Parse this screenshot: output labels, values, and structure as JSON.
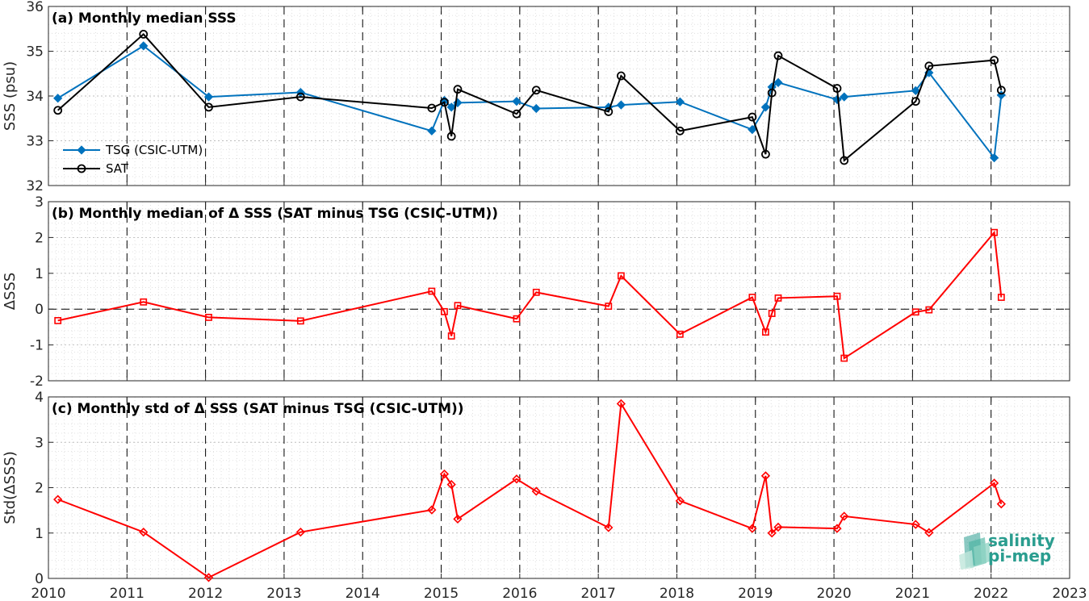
{
  "chart_data": [
    {
      "type": "line",
      "title": "(a) Monthly median SSS",
      "ylabel": "SSS (psu)",
      "xlim": [
        2010,
        2023
      ],
      "ylim": [
        32,
        36
      ],
      "yticks": [
        "32",
        "33",
        "34",
        "35",
        "36"
      ],
      "grid": true,
      "legend_position": "bottom-left",
      "series": [
        {
          "name": "TSG (CSIC-UTM)",
          "color": "#0072bd",
          "marker": "diamond",
          "x": [
            2010.12,
            2011.21,
            2012.04,
            2013.21,
            2014.88,
            2015.04,
            2015.13,
            2015.21,
            2015.96,
            2016.21,
            2017.13,
            2017.29,
            2018.04,
            2018.96,
            2019.13,
            2019.21,
            2019.29,
            2020.04,
            2020.13,
            2021.04,
            2021.21,
            2022.04,
            2022.13
          ],
          "y": [
            33.95,
            35.12,
            33.98,
            34.08,
            33.22,
            33.9,
            33.75,
            33.85,
            33.88,
            33.72,
            33.75,
            33.8,
            33.87,
            33.25,
            33.75,
            34.2,
            34.3,
            33.92,
            33.98,
            34.12,
            34.52,
            32.62,
            34.02
          ]
        },
        {
          "name": "SAT",
          "color": "#000000",
          "marker": "circle",
          "x": [
            2010.12,
            2011.21,
            2012.04,
            2013.21,
            2014.88,
            2015.04,
            2015.13,
            2015.21,
            2015.96,
            2016.21,
            2017.13,
            2017.29,
            2018.04,
            2018.96,
            2019.13,
            2019.21,
            2019.29,
            2020.04,
            2020.13,
            2021.04,
            2021.21,
            2022.04,
            2022.13
          ],
          "y": [
            33.68,
            35.38,
            33.75,
            33.98,
            33.73,
            33.86,
            33.1,
            34.15,
            33.6,
            34.13,
            33.65,
            34.45,
            33.22,
            33.53,
            32.7,
            34.07,
            34.9,
            34.17,
            32.56,
            33.88,
            34.67,
            34.8,
            34.13
          ]
        }
      ]
    },
    {
      "type": "line",
      "title": "(b) Monthly median of Δ SSS (SAT minus TSG (CSIC-UTM))",
      "ylabel": "ΔSSS",
      "xlim": [
        2010,
        2023
      ],
      "ylim": [
        -2,
        3
      ],
      "yticks": [
        "-2",
        "-1",
        "0",
        "1",
        "2",
        "3"
      ],
      "grid": true,
      "series": [
        {
          "color": "#ff0000",
          "marker": "square",
          "x": [
            2010.12,
            2011.21,
            2012.04,
            2013.21,
            2014.88,
            2015.04,
            2015.13,
            2015.21,
            2015.96,
            2016.21,
            2017.13,
            2017.29,
            2018.04,
            2018.96,
            2019.13,
            2019.21,
            2019.29,
            2020.04,
            2020.13,
            2021.04,
            2021.21,
            2022.04,
            2022.13
          ],
          "y": [
            -0.32,
            0.2,
            -0.23,
            -0.33,
            0.5,
            -0.07,
            -0.75,
            0.1,
            -0.27,
            0.47,
            0.08,
            0.93,
            -0.7,
            0.33,
            -0.64,
            -0.12,
            0.31,
            0.36,
            -1.37,
            -0.08,
            -0.02,
            2.14,
            0.33
          ]
        }
      ]
    },
    {
      "type": "line",
      "title": "(c) Monthly std of Δ SSS (SAT minus TSG (CSIC-UTM))",
      "ylabel": "Std(ΔSSS)",
      "xlim": [
        2010,
        2023
      ],
      "ylim": [
        0,
        4
      ],
      "yticks": [
        "0",
        "1",
        "2",
        "3",
        "4"
      ],
      "xticks": [
        "2010",
        "2011",
        "2012",
        "2013",
        "2014",
        "2015",
        "2016",
        "2017",
        "2018",
        "2019",
        "2020",
        "2021",
        "2022",
        "2023"
      ],
      "grid": true,
      "series": [
        {
          "color": "#ff0000",
          "marker": "diamond",
          "x": [
            2010.12,
            2011.21,
            2012.04,
            2013.21,
            2014.88,
            2015.04,
            2015.13,
            2015.21,
            2015.96,
            2016.21,
            2017.13,
            2017.29,
            2018.04,
            2018.96,
            2019.13,
            2019.21,
            2019.29,
            2020.04,
            2020.13,
            2021.04,
            2021.21,
            2022.04,
            2022.13
          ],
          "y": [
            1.74,
            1.02,
            0.02,
            1.02,
            1.51,
            2.3,
            2.07,
            1.31,
            2.19,
            1.92,
            1.12,
            3.85,
            1.71,
            1.1,
            2.26,
            1.0,
            1.13,
            1.1,
            1.37,
            1.19,
            1.01,
            2.1,
            1.64
          ]
        }
      ]
    }
  ],
  "logo": {
    "line1": "salinity",
    "line2": "pi-mep"
  }
}
